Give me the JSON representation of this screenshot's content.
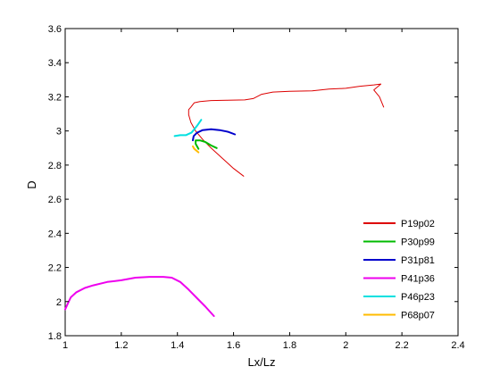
{
  "chart_data": {
    "type": "line",
    "title": "",
    "xlabel": "Lx/Lz",
    "ylabel": "D",
    "xlim": [
      1,
      2.4
    ],
    "ylim": [
      1.8,
      3.6
    ],
    "xticks": [
      "1",
      "1.2",
      "1.4",
      "1.6",
      "1.8",
      "2",
      "2.2",
      "2.4"
    ],
    "yticks": [
      "1.8",
      "2",
      "2.2",
      "2.4",
      "2.6",
      "2.8",
      "3",
      "3.2",
      "3.4",
      "3.6"
    ],
    "grid": false,
    "legend_position": "bottom-right",
    "series": [
      {
        "name": "P19p02",
        "color": "#dd0000",
        "points": [
          [
            1.636,
            2.735
          ],
          [
            1.6,
            2.78
          ],
          [
            1.56,
            2.84
          ],
          [
            1.52,
            2.9
          ],
          [
            1.49,
            2.95
          ],
          [
            1.465,
            3.0
          ],
          [
            1.448,
            3.05
          ],
          [
            1.44,
            3.095
          ],
          [
            1.44,
            3.125
          ],
          [
            1.448,
            3.14
          ],
          [
            1.46,
            3.165
          ],
          [
            1.48,
            3.172
          ],
          [
            1.52,
            3.178
          ],
          [
            1.58,
            3.18
          ],
          [
            1.64,
            3.182
          ],
          [
            1.67,
            3.19
          ],
          [
            1.7,
            3.215
          ],
          [
            1.74,
            3.228
          ],
          [
            1.8,
            3.232
          ],
          [
            1.88,
            3.235
          ],
          [
            1.94,
            3.245
          ],
          [
            2.0,
            3.25
          ],
          [
            2.05,
            3.262
          ],
          [
            2.1,
            3.27
          ],
          [
            2.125,
            3.275
          ],
          [
            2.1,
            3.24
          ],
          [
            2.12,
            3.2
          ],
          [
            2.135,
            3.14
          ]
        ]
      },
      {
        "name": "P30p99",
        "color": "#00bb00",
        "points": [
          [
            1.54,
            2.9
          ],
          [
            1.52,
            2.915
          ],
          [
            1.5,
            2.935
          ],
          [
            1.48,
            2.945
          ],
          [
            1.465,
            2.945
          ],
          [
            1.465,
            2.925
          ],
          [
            1.475,
            2.895
          ]
        ]
      },
      {
        "name": "P31p81",
        "color": "#0000cc",
        "points": [
          [
            1.605,
            2.98
          ],
          [
            1.58,
            2.995
          ],
          [
            1.55,
            3.005
          ],
          [
            1.52,
            3.01
          ],
          [
            1.49,
            3.005
          ],
          [
            1.47,
            2.99
          ],
          [
            1.458,
            2.97
          ],
          [
            1.455,
            2.945
          ]
        ]
      },
      {
        "name": "P41p36",
        "color": "#ee00ee",
        "points": [
          [
            1.0,
            1.955
          ],
          [
            1.01,
            1.99
          ],
          [
            1.02,
            2.025
          ],
          [
            1.04,
            2.055
          ],
          [
            1.07,
            2.08
          ],
          [
            1.1,
            2.095
          ],
          [
            1.15,
            2.115
          ],
          [
            1.2,
            2.125
          ],
          [
            1.25,
            2.14
          ],
          [
            1.3,
            2.145
          ],
          [
            1.35,
            2.145
          ],
          [
            1.38,
            2.14
          ],
          [
            1.41,
            2.115
          ],
          [
            1.44,
            2.07
          ],
          [
            1.47,
            2.02
          ],
          [
            1.5,
            1.97
          ],
          [
            1.53,
            1.915
          ]
        ]
      },
      {
        "name": "P46p23",
        "color": "#00e0e0",
        "points": [
          [
            1.39,
            2.97
          ],
          [
            1.41,
            2.975
          ],
          [
            1.43,
            2.975
          ],
          [
            1.45,
            2.99
          ],
          [
            1.46,
            3.01
          ],
          [
            1.47,
            3.03
          ],
          [
            1.485,
            3.065
          ]
        ]
      },
      {
        "name": "P68p07",
        "color": "#ffbb00",
        "points": [
          [
            1.455,
            2.91
          ],
          [
            1.46,
            2.895
          ],
          [
            1.475,
            2.875
          ]
        ]
      }
    ]
  }
}
